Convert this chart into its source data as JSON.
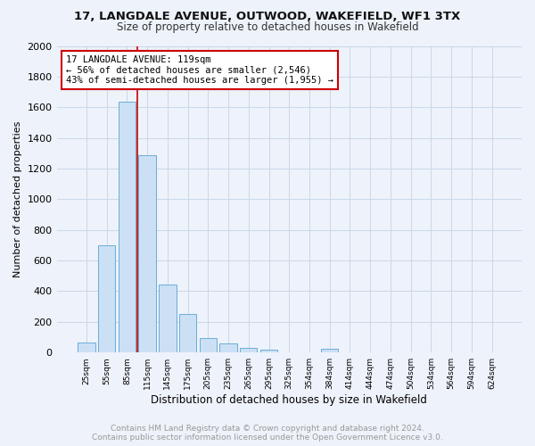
{
  "title": "17, LANGDALE AVENUE, OUTWOOD, WAKEFIELD, WF1 3TX",
  "subtitle": "Size of property relative to detached houses in Wakefield",
  "xlabel": "Distribution of detached houses by size in Wakefield",
  "ylabel": "Number of detached properties",
  "footer_line1": "Contains HM Land Registry data © Crown copyright and database right 2024.",
  "footer_line2": "Contains public sector information licensed under the Open Government Licence v3.0.",
  "categories": [
    "25sqm",
    "55sqm",
    "85sqm",
    "115sqm",
    "145sqm",
    "175sqm",
    "205sqm",
    "235sqm",
    "265sqm",
    "295sqm",
    "325sqm",
    "354sqm",
    "384sqm",
    "414sqm",
    "444sqm",
    "474sqm",
    "504sqm",
    "534sqm",
    "564sqm",
    "594sqm",
    "624sqm"
  ],
  "values": [
    67,
    697,
    1638,
    1285,
    441,
    253,
    95,
    57,
    30,
    20,
    0,
    0,
    22,
    0,
    0,
    0,
    0,
    0,
    0,
    0,
    0
  ],
  "bar_color": "#cce0f5",
  "bar_edge_color": "#6aaed6",
  "vline_color": "#cc0000",
  "annotation_line1": "17 LANGDALE AVENUE: 119sqm",
  "annotation_line2": "← 56% of detached houses are smaller (2,546)",
  "annotation_line3": "43% of semi-detached houses are larger (1,955) →",
  "annotation_box_color": "#ffffff",
  "annotation_box_edge_color": "#cc0000",
  "ylim": [
    0,
    2000
  ],
  "yticks": [
    0,
    200,
    400,
    600,
    800,
    1000,
    1200,
    1400,
    1600,
    1800,
    2000
  ],
  "grid_color": "#c8d8e8",
  "background_color": "#eef2fa",
  "title_fontsize": 9.5,
  "subtitle_fontsize": 8.5,
  "ylabel_fontsize": 8,
  "xlabel_fontsize": 8.5,
  "ytick_fontsize": 8,
  "xtick_fontsize": 6.5,
  "annotation_fontsize": 7.5,
  "footer_fontsize": 6.5,
  "footer_color": "#999999"
}
